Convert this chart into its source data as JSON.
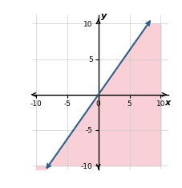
{
  "xlim": [
    -10,
    10
  ],
  "ylim": [
    -10,
    10
  ],
  "xticks": [
    -10,
    -5,
    0,
    5,
    10
  ],
  "yticks": [
    -10,
    -5,
    0,
    5,
    10
  ],
  "slope": 1.25,
  "intercept": 0,
  "line_color": "#2e5f8a",
  "shade_color": "#f9d0d5",
  "shade_alpha": 1.0,
  "xlabel": "x",
  "ylabel": "y",
  "tick_fontsize": 6.5,
  "label_fontsize": 8,
  "figsize": [
    2.28,
    2.34
  ],
  "dpi": 100,
  "x_line_start": -8.0,
  "x_line_end": 8.0
}
